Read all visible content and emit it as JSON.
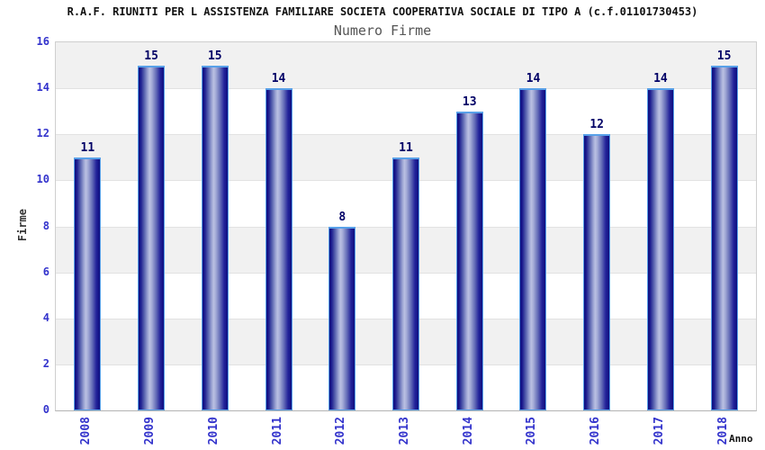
{
  "header": {
    "title": "R.A.F. RIUNITI PER L ASSISTENZA FAMILIARE SOCIETA COOPERATIVA SOCIALE DI TIPO A (c.f.01101730453)",
    "subtitle": "Numero Firme"
  },
  "chart_data": {
    "type": "bar",
    "title": "R.A.F. RIUNITI PER L ASSISTENZA FAMILIARE SOCIETA COOPERATIVA SOCIALE DI TIPO A (c.f.01101730453)",
    "subtitle": "Numero Firme",
    "xlabel": "Anno",
    "ylabel": "Firme",
    "categories": [
      "2008",
      "2009",
      "2010",
      "2011",
      "2012",
      "2013",
      "2014",
      "2015",
      "2016",
      "2017",
      "2018"
    ],
    "values": [
      11,
      15,
      15,
      14,
      8,
      11,
      13,
      14,
      12,
      14,
      15
    ],
    "ylim": [
      0,
      16
    ],
    "yticks": [
      0,
      2,
      4,
      6,
      8,
      10,
      12,
      14,
      16
    ],
    "grid": "horizontal alternating bands every 2 units, gray top band",
    "legend_position": "none",
    "bar_value_labels": true,
    "colors": {
      "bar_dark": "#0e0e7e",
      "bar_light": "#bac0e2",
      "bar_border": "#58a0e8",
      "tick_label": "#3333cc",
      "value_label": "#000066",
      "band_gray": "#f1f1f1",
      "band_white": "#ffffff",
      "grid_line": "#e2e2e2",
      "axis_frame": "#cfcfcf",
      "title_color": "#111111",
      "subtitle_color": "#555555"
    }
  }
}
